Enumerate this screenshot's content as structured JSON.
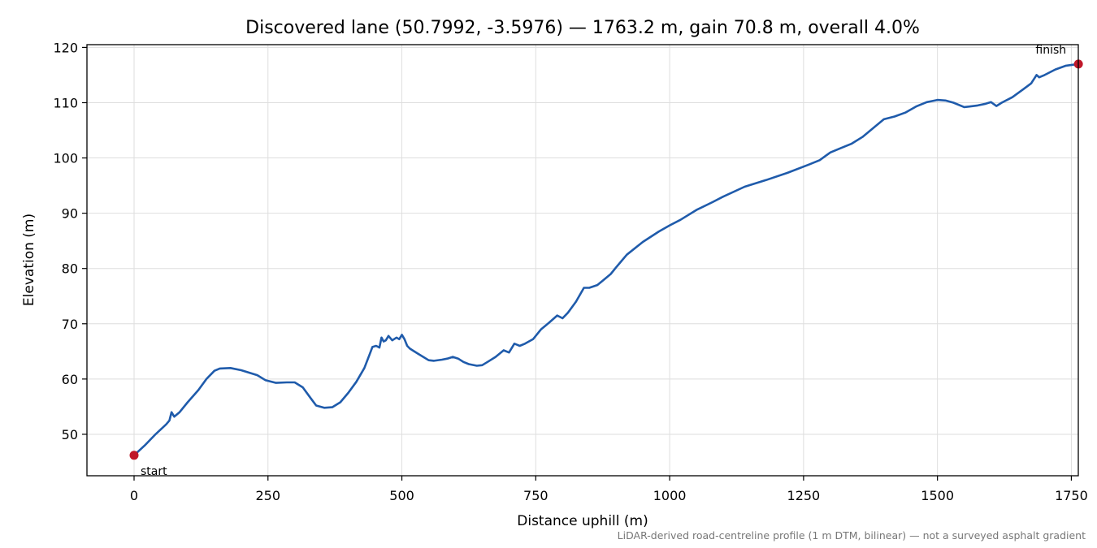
{
  "chart_data": {
    "type": "line",
    "title": "Discovered lane (50.7992, -3.5976) — 1763.2 m, gain 70.8 m, overall 4.0%",
    "xlabel": "Distance uphill (m)",
    "ylabel": "Elevation (m)",
    "xlim": [
      -88,
      1763
    ],
    "ylim": [
      42.5,
      120.5
    ],
    "xticks": [
      0,
      250,
      500,
      750,
      1000,
      1250,
      1500,
      1750
    ],
    "yticks": [
      50,
      60,
      70,
      80,
      90,
      100,
      110,
      120
    ],
    "grid": true,
    "footnote": "LiDAR-derived road-centreline profile (1 m DTM, bilinear) — not a surveyed asphalt gradient",
    "line_color": "#1f5bab",
    "marker_color": "#c0182a",
    "markers": [
      {
        "label": "start",
        "x": 0,
        "y": 46.2
      },
      {
        "label": "finish",
        "x": 1763.2,
        "y": 117.0
      }
    ],
    "series": [
      {
        "x": [
          0,
          20,
          40,
          60,
          66,
          70,
          75,
          85,
          100,
          120,
          135,
          150,
          160,
          180,
          200,
          230,
          245,
          265,
          285,
          300,
          315,
          330,
          340,
          355,
          370,
          385,
          400,
          415,
          430,
          440,
          445,
          452,
          458,
          462,
          466,
          470,
          475,
          482,
          490,
          495,
          500,
          505,
          510,
          515,
          530,
          550,
          560,
          575,
          585,
          595,
          605,
          615,
          625,
          640,
          650,
          660,
          675,
          690,
          700,
          710,
          720,
          730,
          745,
          760,
          775,
          790,
          800,
          810,
          825,
          840,
          850,
          865,
          875,
          890,
          900,
          920,
          950,
          980,
          1000,
          1020,
          1050,
          1080,
          1100,
          1140,
          1180,
          1220,
          1260,
          1280,
          1300,
          1320,
          1340,
          1360,
          1380,
          1400,
          1420,
          1440,
          1460,
          1480,
          1500,
          1515,
          1530,
          1550,
          1560,
          1575,
          1590,
          1600,
          1610,
          1620,
          1640,
          1660,
          1675,
          1685,
          1690,
          1700,
          1720,
          1740,
          1763.2
        ],
        "y": [
          46.2,
          48.0,
          50.0,
          51.8,
          52.5,
          54.0,
          53.2,
          54.0,
          55.8,
          58.0,
          60.0,
          61.5,
          61.9,
          62.0,
          61.6,
          60.7,
          59.8,
          59.3,
          59.4,
          59.4,
          58.5,
          56.5,
          55.2,
          54.8,
          54.9,
          55.8,
          57.5,
          59.5,
          62.0,
          64.5,
          65.8,
          66.0,
          65.7,
          67.5,
          66.8,
          67.0,
          67.8,
          67.0,
          67.5,
          67.2,
          68.0,
          67.2,
          66.0,
          65.5,
          64.6,
          63.4,
          63.3,
          63.5,
          63.7,
          64.0,
          63.7,
          63.1,
          62.7,
          62.4,
          62.5,
          63.1,
          64.0,
          65.2,
          64.8,
          66.4,
          66.0,
          66.4,
          67.2,
          69.0,
          70.2,
          71.5,
          71.0,
          72.0,
          74.0,
          76.5,
          76.5,
          77.0,
          77.8,
          79.0,
          80.2,
          82.5,
          84.8,
          86.7,
          87.8,
          88.8,
          90.6,
          92.0,
          93.0,
          94.8,
          96.0,
          97.3,
          98.8,
          99.6,
          101.0,
          101.8,
          102.6,
          103.8,
          105.4,
          107.0,
          107.5,
          108.2,
          109.3,
          110.1,
          110.5,
          110.4,
          110.0,
          109.2,
          109.3,
          109.5,
          109.8,
          110.1,
          109.4,
          110.0,
          111.0,
          112.4,
          113.5,
          115.0,
          114.6,
          115.0,
          116.0,
          116.7,
          117.0
        ]
      }
    ]
  }
}
